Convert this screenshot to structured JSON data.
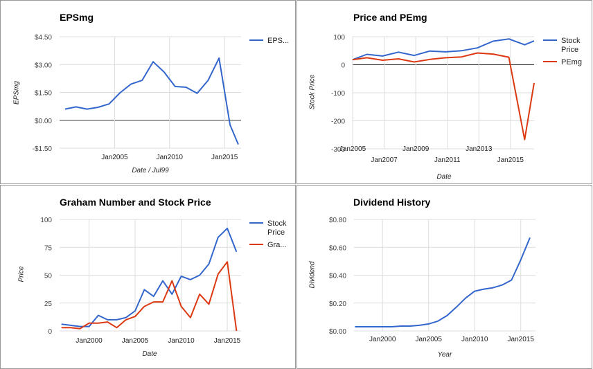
{
  "colors": {
    "blue": "#3366cc",
    "red": "#dc3912",
    "grid": "#dcdcdc",
    "zero": "#333333"
  },
  "chart_data": [
    {
      "type": "line",
      "title": "EPSmg",
      "xlabel": "Date / Jul99",
      "ylabel": "EPSmg",
      "x_range": [
        2000.0,
        2016.5
      ],
      "ylim": [
        -1.5,
        4.5
      ],
      "y_ticks": [
        -1.5,
        0,
        1.5,
        3.0,
        4.5
      ],
      "y_tick_labels": [
        "-$1.50",
        "$0.00",
        "$1.50",
        "$3.00",
        "$4.50"
      ],
      "x_ticks": [
        2005,
        2010,
        2015
      ],
      "x_tick_labels": [
        "Jan2005",
        "Jan2010",
        "Jan2015"
      ],
      "legend": "right",
      "series": [
        {
          "name": "EPS...",
          "color": "#3366cc",
          "x": [
            2000.5,
            2001.5,
            2002.5,
            2003.5,
            2004.5,
            2005.5,
            2006.5,
            2007.5,
            2008.5,
            2009.5,
            2010.5,
            2011.5,
            2012.5,
            2013.5,
            2014.5,
            2015.5,
            2016.25
          ],
          "y": [
            0.6,
            0.72,
            0.6,
            0.7,
            0.88,
            1.48,
            1.95,
            2.15,
            3.15,
            2.6,
            1.82,
            1.78,
            1.45,
            2.15,
            3.35,
            -0.25,
            -1.3
          ]
        }
      ]
    },
    {
      "type": "line",
      "title": "Price and PEmg",
      "xlabel": "Date",
      "ylabel": "Stock Price",
      "x_range": [
        2005.0,
        2016.5
      ],
      "ylim": [
        -300,
        100
      ],
      "y_ticks": [
        -300,
        -200,
        -100,
        0,
        100
      ],
      "y_tick_labels": [
        "-300",
        "-200",
        "-100",
        "0",
        "100"
      ],
      "x_ticks": [
        2005,
        2007,
        2009,
        2011,
        2013,
        2015
      ],
      "x_tick_labels": [
        "Jan2005",
        "Jan2007",
        "Jan2009",
        "Jan2011",
        "Jan2013",
        "Jan2015"
      ],
      "x_tick_staggered": true,
      "legend": "right",
      "series": [
        {
          "name": "Stock Price",
          "color": "#3366cc",
          "x": [
            2005.0,
            2005.9,
            2006.9,
            2007.9,
            2008.9,
            2009.9,
            2010.9,
            2011.9,
            2012.9,
            2013.9,
            2014.9,
            2015.9,
            2016.5
          ],
          "y": [
            18,
            37,
            31,
            45,
            33,
            49,
            46,
            50,
            60,
            84,
            92,
            71,
            85
          ]
        },
        {
          "name": "PEmg",
          "color": "#dc3912",
          "x": [
            2005.0,
            2005.9,
            2006.9,
            2007.9,
            2008.9,
            2009.9,
            2010.9,
            2011.9,
            2012.9,
            2013.9,
            2014.9,
            2015.9,
            2016.5
          ],
          "y": [
            18,
            25,
            16,
            21,
            10,
            19,
            25,
            28,
            42,
            38,
            27,
            -267,
            -65
          ]
        }
      ]
    },
    {
      "type": "line",
      "title": "Graham Number and Stock Price",
      "xlabel": "Date",
      "ylabel": "Price",
      "x_range": [
        1996.8,
        2016.5
      ],
      "ylim": [
        0,
        100
      ],
      "y_ticks": [
        0,
        25,
        50,
        75,
        100
      ],
      "y_tick_labels": [
        "0",
        "25",
        "50",
        "75",
        "100"
      ],
      "x_ticks": [
        2000,
        2005,
        2010,
        2015
      ],
      "x_tick_labels": [
        "Jan2000",
        "Jan2005",
        "Jan2010",
        "Jan2015"
      ],
      "legend": "right",
      "series": [
        {
          "name": "Stock Price",
          "color": "#3366cc",
          "x": [
            1997.0,
            1998.0,
            1999.0,
            2000.0,
            2001.0,
            2002.0,
            2003.0,
            2004.0,
            2005.0,
            2006.0,
            2007.0,
            2008.0,
            2009.0,
            2010.0,
            2011.0,
            2012.0,
            2013.0,
            2014.0,
            2015.0,
            2016.0
          ],
          "y": [
            6,
            5,
            4,
            4,
            14,
            10,
            10,
            12,
            18,
            37,
            31,
            45,
            33,
            49,
            46,
            50,
            60,
            84,
            92,
            71
          ]
        },
        {
          "name": "Gra...",
          "color": "#dc3912",
          "x": [
            1997.0,
            1998.0,
            1999.0,
            2000.0,
            2001.0,
            2002.0,
            2003.0,
            2004.0,
            2005.0,
            2006.0,
            2007.0,
            2008.0,
            2009.0,
            2010.0,
            2011.0,
            2012.0,
            2013.0,
            2014.0,
            2015.0,
            2016.0
          ],
          "y": [
            3,
            3,
            2,
            7,
            7,
            8,
            3,
            10,
            13,
            22,
            26,
            26,
            45,
            22,
            12,
            33,
            24,
            51,
            62,
            0
          ]
        }
      ]
    },
    {
      "type": "line",
      "title": "Dividend History",
      "xlabel": "Year",
      "ylabel": "Dividend",
      "x_range": [
        1996.9,
        2016.6
      ],
      "ylim": [
        0,
        0.8
      ],
      "y_ticks": [
        0,
        0.2,
        0.4,
        0.6,
        0.8
      ],
      "y_tick_labels": [
        "$0.00",
        "$0.20",
        "$0.40",
        "$0.60",
        "$0.80"
      ],
      "x_ticks": [
        2000,
        2005,
        2010,
        2015
      ],
      "x_tick_labels": [
        "Jan2000",
        "Jan2005",
        "Jan2010",
        "Jan2015"
      ],
      "legend": "none",
      "series": [
        {
          "name": "",
          "color": "#3366cc",
          "x": [
            1997.0,
            1998.0,
            1999.0,
            2000.0,
            2001.0,
            2002.0,
            2003.0,
            2004.0,
            2005.0,
            2006.0,
            2007.0,
            2008.0,
            2009.0,
            2010.0,
            2011.0,
            2012.0,
            2013.0,
            2014.0,
            2015.0,
            2016.0
          ],
          "y": [
            0.03,
            0.03,
            0.03,
            0.03,
            0.03,
            0.035,
            0.035,
            0.04,
            0.05,
            0.07,
            0.11,
            0.17,
            0.235,
            0.285,
            0.3,
            0.31,
            0.33,
            0.365,
            0.51,
            0.67
          ]
        }
      ]
    }
  ]
}
